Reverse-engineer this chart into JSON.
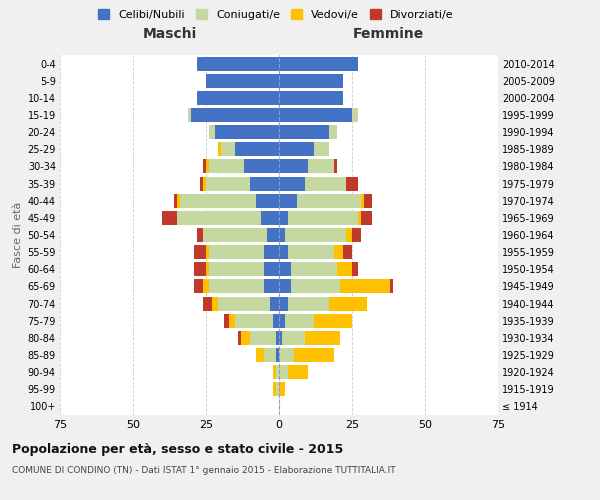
{
  "age_groups": [
    "100+",
    "95-99",
    "90-94",
    "85-89",
    "80-84",
    "75-79",
    "70-74",
    "65-69",
    "60-64",
    "55-59",
    "50-54",
    "45-49",
    "40-44",
    "35-39",
    "30-34",
    "25-29",
    "20-24",
    "15-19",
    "10-14",
    "5-9",
    "0-4"
  ],
  "birth_years": [
    "≤ 1914",
    "1915-1919",
    "1920-1924",
    "1925-1929",
    "1930-1934",
    "1935-1939",
    "1940-1944",
    "1945-1949",
    "1950-1954",
    "1955-1959",
    "1960-1964",
    "1965-1969",
    "1970-1974",
    "1975-1979",
    "1980-1984",
    "1985-1989",
    "1990-1994",
    "1995-1999",
    "2000-2004",
    "2005-2009",
    "2010-2014"
  ],
  "males": {
    "celibi": [
      0,
      0,
      0,
      1,
      1,
      2,
      3,
      5,
      5,
      5,
      4,
      6,
      8,
      10,
      12,
      15,
      22,
      30,
      28,
      25,
      28
    ],
    "coniugati": [
      0,
      1,
      1,
      4,
      9,
      13,
      18,
      19,
      19,
      19,
      22,
      29,
      26,
      15,
      12,
      5,
      2,
      1,
      0,
      0,
      0
    ],
    "vedovi": [
      0,
      1,
      1,
      3,
      3,
      2,
      2,
      2,
      1,
      1,
      0,
      0,
      1,
      1,
      1,
      1,
      0,
      0,
      0,
      0,
      0
    ],
    "divorziati": [
      0,
      0,
      0,
      0,
      1,
      2,
      3,
      3,
      4,
      4,
      2,
      5,
      1,
      1,
      1,
      0,
      0,
      0,
      0,
      0,
      0
    ]
  },
  "females": {
    "nubili": [
      0,
      0,
      0,
      0,
      1,
      2,
      3,
      4,
      4,
      3,
      2,
      3,
      6,
      9,
      10,
      12,
      17,
      25,
      22,
      22,
      27
    ],
    "coniugate": [
      0,
      0,
      3,
      5,
      8,
      10,
      14,
      17,
      16,
      16,
      21,
      24,
      22,
      14,
      9,
      5,
      3,
      2,
      0,
      0,
      0
    ],
    "vedove": [
      0,
      2,
      7,
      14,
      12,
      13,
      13,
      17,
      5,
      3,
      2,
      1,
      1,
      0,
      0,
      0,
      0,
      0,
      0,
      0,
      0
    ],
    "divorziate": [
      0,
      0,
      0,
      0,
      0,
      0,
      0,
      1,
      2,
      3,
      3,
      4,
      3,
      4,
      1,
      0,
      0,
      0,
      0,
      0,
      0
    ]
  },
  "colors": {
    "celibi_nubili": "#4472c4",
    "coniugati": "#c5d8a0",
    "vedovi": "#ffc000",
    "divorziati": "#c0392b"
  },
  "title": "Popolazione per età, sesso e stato civile - 2015",
  "subtitle": "COMUNE DI CONDINO (TN) - Dati ISTAT 1° gennaio 2015 - Elaborazione TUTTITALIA.IT",
  "xlabel_left": "Maschi",
  "xlabel_right": "Femmine",
  "ylabel_left": "Fasce di età",
  "xlim": 75,
  "bg_color": "#f0f0f0",
  "plot_bg": "#ffffff",
  "legend_labels": [
    "Celibi/Nubili",
    "Coniugati/e",
    "Vedovi/e",
    "Divorziati/e"
  ]
}
